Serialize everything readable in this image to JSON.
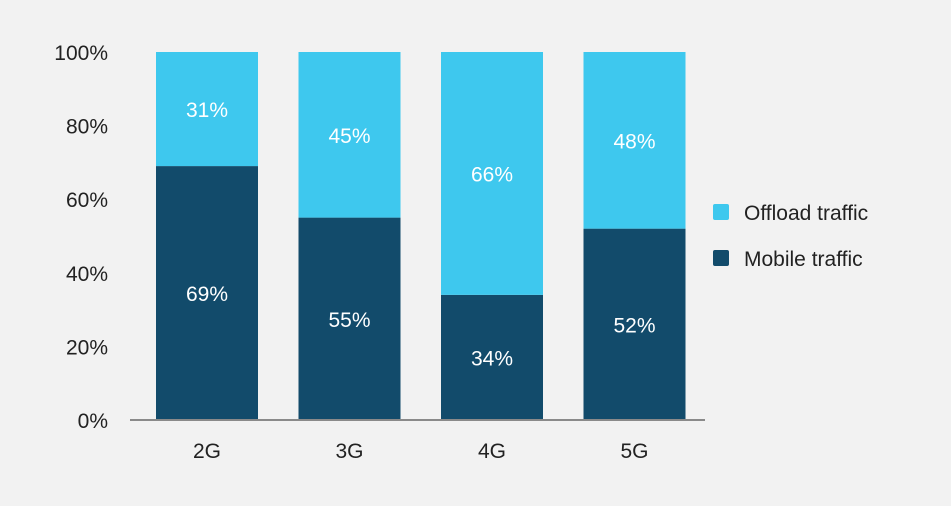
{
  "chart_data": {
    "type": "bar",
    "stacked": true,
    "categories": [
      "2G",
      "3G",
      "4G",
      "5G"
    ],
    "series": [
      {
        "name": "Mobile traffic",
        "values": [
          69,
          55,
          34,
          52
        ],
        "labels": [
          "69%",
          "55%",
          "34%",
          "52%"
        ],
        "color": "#124b6b"
      },
      {
        "name": "Offload traffic",
        "values": [
          31,
          45,
          66,
          48
        ],
        "labels": [
          "31%",
          "45%",
          "66%",
          "48%"
        ],
        "color": "#3ec8ee"
      }
    ],
    "yticks": [
      "0%",
      "20%",
      "40%",
      "60%",
      "80%",
      "100%"
    ],
    "ylim": [
      0,
      100
    ],
    "title": "",
    "xlabel": "",
    "ylabel": "",
    "grid": false,
    "legend": {
      "position": "right",
      "order": [
        "Offload traffic",
        "Mobile traffic"
      ]
    },
    "background_color": "#f2f2f2",
    "axis_color": "#8a8a8a"
  }
}
